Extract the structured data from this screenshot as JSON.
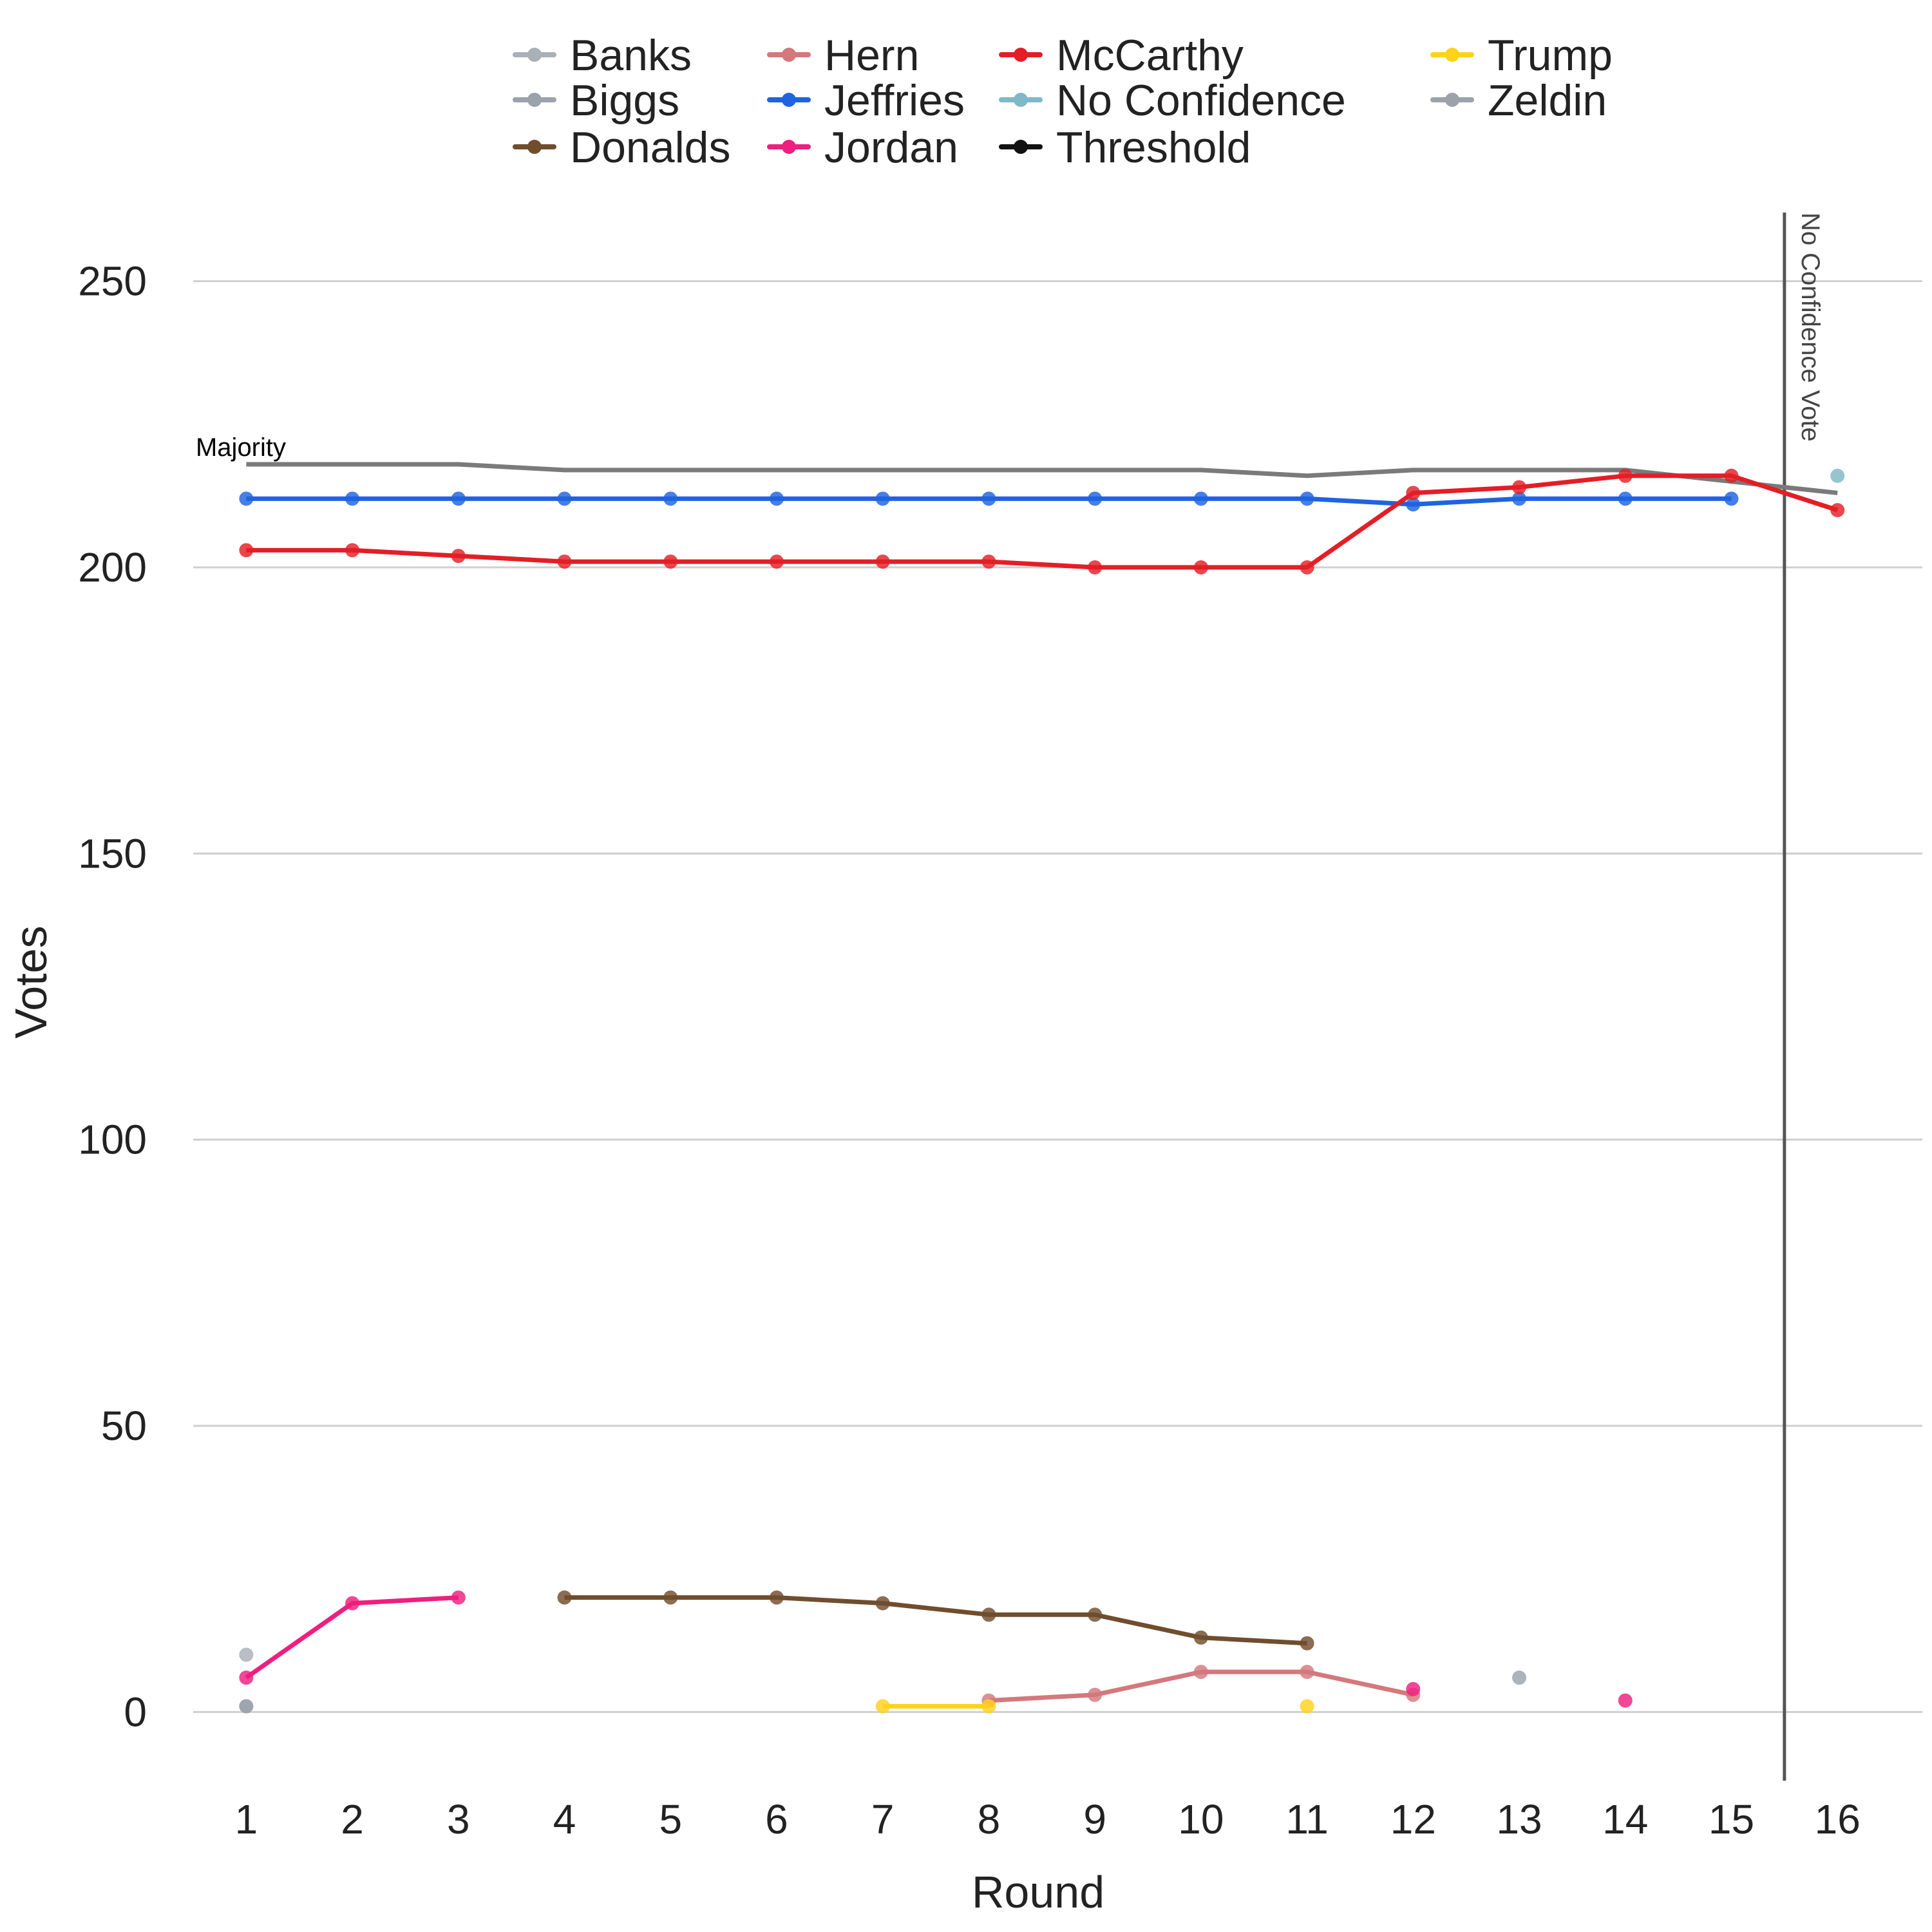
{
  "chart_data": {
    "type": "line",
    "xlabel": "Round",
    "ylabel": "Votes",
    "xlim": [
      0.5,
      16.8
    ],
    "ylim": [
      -12,
      262
    ],
    "x_ticks": [
      1,
      2,
      3,
      4,
      5,
      6,
      7,
      8,
      9,
      10,
      11,
      12,
      13,
      14,
      15,
      16
    ],
    "y_ticks": [
      0,
      50,
      100,
      150,
      200,
      250
    ],
    "grid": "horizontal",
    "legend_position": "top",
    "legend": [
      "Banks",
      "Biggs",
      "Donalds",
      "Hern",
      "Jeffries",
      "Jordan",
      "McCarthy",
      "No Confidence",
      "Threshold",
      "Trump",
      "Zeldin"
    ],
    "annotations": {
      "majority_label": "Majority",
      "vertical_line_label": "No Confidence Vote",
      "vertical_line_x": 15.5
    },
    "majority": {
      "x": [
        1,
        2,
        3,
        4,
        5,
        6,
        7,
        8,
        9,
        10,
        11,
        12,
        13,
        14,
        15,
        16
      ],
      "values": [
        218,
        218,
        218,
        217,
        217,
        217,
        217,
        217,
        217,
        217,
        216,
        217,
        217,
        217,
        215,
        213
      ]
    },
    "series": [
      {
        "name": "Banks",
        "color": "#a9b0b8",
        "points": [
          [
            1,
            10
          ]
        ]
      },
      {
        "name": "Biggs",
        "color": "#9ba2ab",
        "points": [
          [
            1,
            1
          ],
          [
            13,
            6
          ]
        ]
      },
      {
        "name": "Donalds",
        "color": "#704d2d",
        "points": [
          [
            4,
            20
          ],
          [
            5,
            20
          ],
          [
            6,
            20
          ],
          [
            7,
            19
          ],
          [
            8,
            17
          ],
          [
            9,
            17
          ],
          [
            10,
            13
          ],
          [
            11,
            12
          ]
        ]
      },
      {
        "name": "Hern",
        "color": "#d4787c",
        "points": [
          [
            8,
            2
          ],
          [
            9,
            3
          ],
          [
            10,
            7
          ],
          [
            11,
            7
          ],
          [
            12,
            3
          ]
        ]
      },
      {
        "name": "Jeffries",
        "color": "#1f63e0",
        "points": [
          [
            1,
            212
          ],
          [
            2,
            212
          ],
          [
            3,
            212
          ],
          [
            4,
            212
          ],
          [
            5,
            212
          ],
          [
            6,
            212
          ],
          [
            7,
            212
          ],
          [
            8,
            212
          ],
          [
            9,
            212
          ],
          [
            10,
            212
          ],
          [
            11,
            212
          ],
          [
            12,
            211
          ],
          [
            13,
            212
          ],
          [
            14,
            212
          ],
          [
            15,
            212
          ]
        ]
      },
      {
        "name": "Jordan",
        "color": "#ee1f7f",
        "points": [
          [
            1,
            6
          ],
          [
            2,
            19
          ],
          [
            3,
            20
          ],
          [
            12,
            4
          ],
          [
            14,
            2
          ]
        ]
      },
      {
        "name": "McCarthy",
        "color": "#e31e26",
        "points": [
          [
            1,
            203
          ],
          [
            2,
            203
          ],
          [
            3,
            202
          ],
          [
            4,
            201
          ],
          [
            5,
            201
          ],
          [
            6,
            201
          ],
          [
            7,
            201
          ],
          [
            8,
            201
          ],
          [
            9,
            200
          ],
          [
            10,
            200
          ],
          [
            11,
            200
          ],
          [
            12,
            213
          ],
          [
            13,
            214
          ],
          [
            14,
            216
          ],
          [
            15,
            216
          ],
          [
            16,
            210
          ]
        ]
      },
      {
        "name": "No Confidence",
        "color": "#7fb8c6",
        "points": [
          [
            16,
            216
          ]
        ]
      },
      {
        "name": "Threshold",
        "color": "#111111",
        "points": []
      },
      {
        "name": "Trump",
        "color": "#ffd21a",
        "points": [
          [
            7,
            1
          ],
          [
            8,
            1
          ],
          [
            11,
            1
          ]
        ]
      },
      {
        "name": "Zeldin",
        "color": "#9ba2ab",
        "points": [
          [
            1,
            1
          ]
        ]
      }
    ],
    "majority_color": "#7a7a7a",
    "vline_color": "#555555",
    "grid_color": "#cfcfcf"
  }
}
